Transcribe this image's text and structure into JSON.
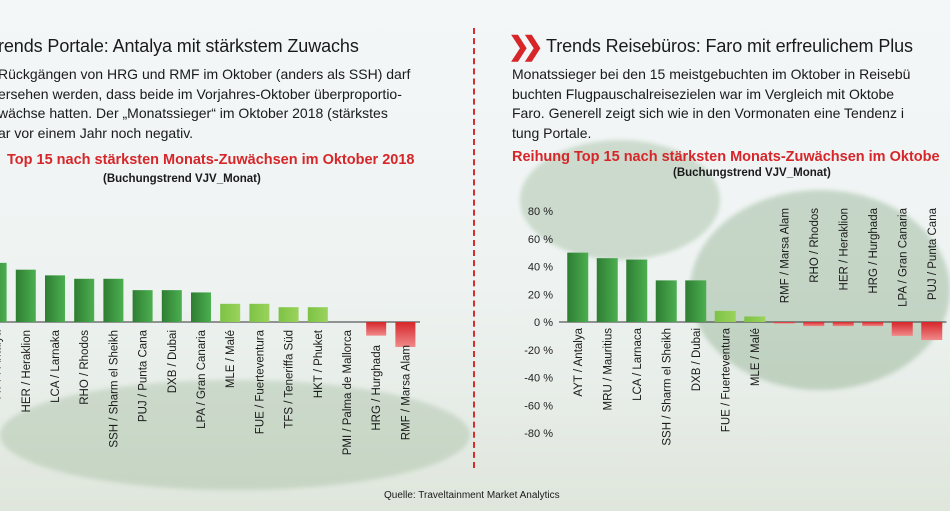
{
  "colors": {
    "accent": "#d6262a",
    "pos_bar": "#2e7d32",
    "pos_bar_light": "#9bd35c",
    "neg_bar": "#d6262a"
  },
  "left_panel": {
    "title": "rends Portale: Antalya mit stärkstem Zuwachs",
    "paragraph": "Rückgängen von HRG und RMF im Oktober (anders als SSH) darf\nersehen werden, dass beide im Vorjahres-Oktober überproportio-\nwächse hatten. Der „Monatssieger“ im Oktober 2018 (stärkstes\nar vor einem Jahr noch negativ."
  },
  "right_panel": {
    "chevron_icon": "double-chevron-right",
    "title": "Trends Reisebüros: Faro mit erfreulichem Plus",
    "paragraph": "Monatssieger bei den 15 meistgebuchten im Oktober in Reisebü\nbuchten Flugpauschalreisezielen war im Vergleich mit Oktobe\nFaro. Generell zeigt sich wie in den Vormonaten eine Tendenz i\ntung Portale."
  },
  "source": "Quelle: Traveltainment Market Analytics",
  "chart_data": [
    {
      "type": "bar",
      "title": "Top 15 nach stärksten Monats-Zuwächsen im Oktober 2018",
      "subtitle": "(Buchungstrend VJV_Monat)",
      "categories": [
        "AYT / Antalya",
        "HER / Heraklion",
        "LCA / Larnaka",
        "RHO / Rhodos",
        "SSH / Sharm el Sheikh",
        "PUJ / Punta Cana",
        "DXB / Dubai",
        "LPA / Gran Canaria",
        "MLE / Malé",
        "FUE / Fuerteventura",
        "TFS / Teneriffa Süd",
        "HKT / Phuket",
        "PMI / Palma de Mallorca",
        "HRG / Hurghada",
        "RMF / Marsa Alam"
      ],
      "values": [
        52,
        46,
        41,
        38,
        38,
        28,
        28,
        26,
        16,
        16,
        13,
        13,
        0,
        -12,
        -22
      ],
      "ylim": [
        -80,
        80
      ],
      "grid": false
    },
    {
      "type": "bar",
      "title": "Reihung Top 15 nach stärksten Monats-Zuwächsen im Oktobe",
      "subtitle": "(Buchungstrend VJV_Monat)",
      "categories": [
        "AYT / Antalya",
        "MRU / Mauritius",
        "LCA / Larnaca",
        "SSH / Sharm el Sheikh",
        "DXB / Dubai",
        "FUE / Fuerteventura",
        "MLE / Malé",
        "RMF / Marsa Alam",
        "RHO / Rhodos",
        "HER / Heraklion",
        "HRG / Hurghada",
        "LPA / Gran Canaria",
        "PUJ / Punta Cana"
      ],
      "values": [
        50,
        46,
        45,
        30,
        30,
        8,
        4,
        -1,
        -3,
        -3,
        -3,
        -10,
        -13
      ],
      "yticks": [
        "80 %",
        "60 %",
        "40 %",
        "20 %",
        "0 %",
        "-20 %",
        "-40 %",
        "-60 %",
        "-80 %"
      ],
      "ylim": [
        -80,
        80
      ],
      "grid": false
    }
  ]
}
